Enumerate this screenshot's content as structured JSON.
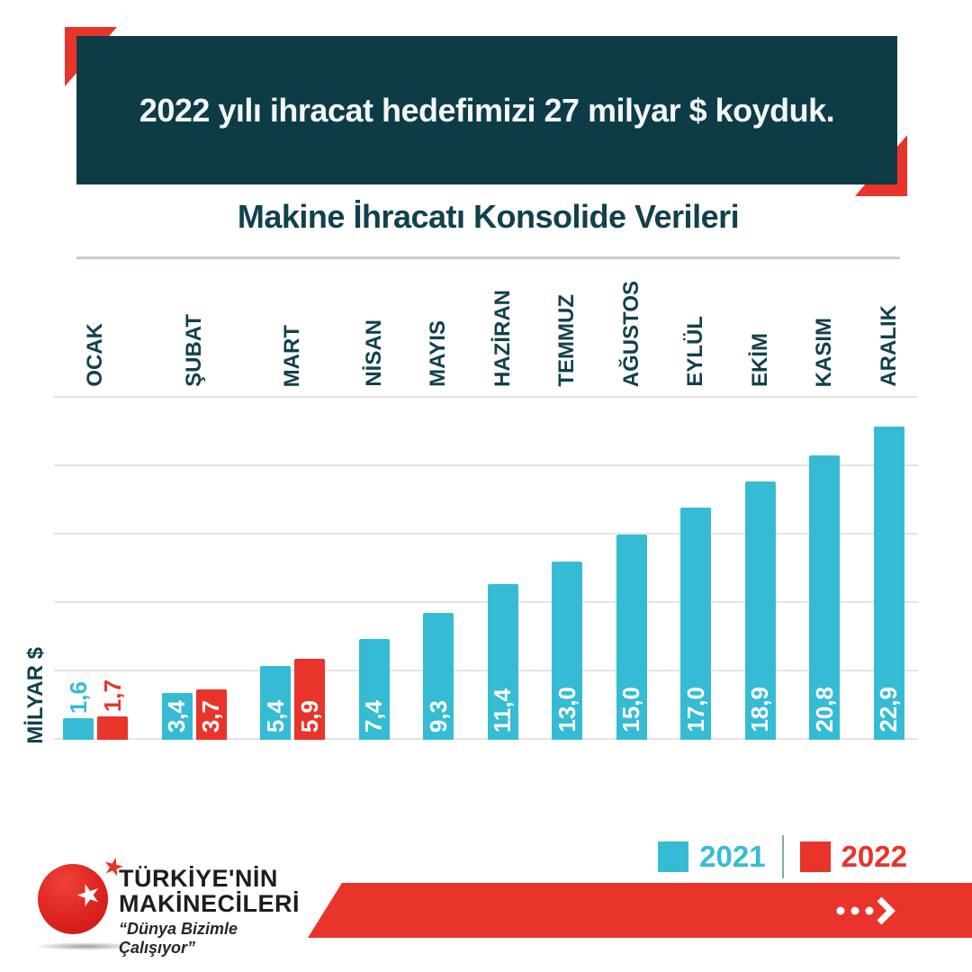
{
  "header": {
    "text": "2022 yılı ihracat hedefimizi 27 milyar $ koyduk."
  },
  "chart": {
    "title": "Makine İhracatı Konsolide Verileri"
  },
  "chart_data": {
    "type": "bar",
    "title": "Makine İhracatı Konsolide Verileri",
    "ylabel": "MİLYAR $",
    "ylim": [
      0,
      25
    ],
    "grid_step": 5,
    "grid": true,
    "legend_position": "bottom-right",
    "categories": [
      "OCAK",
      "ŞUBAT",
      "MART",
      "NİSAN",
      "MAYIS",
      "HAZİRAN",
      "TEMMUZ",
      "AĞUSTOS",
      "EYLÜL",
      "EKİM",
      "KASIM",
      "ARALIK"
    ],
    "series": [
      {
        "name": "2021",
        "color": "#35bcd4",
        "values": [
          1.6,
          3.4,
          5.4,
          7.4,
          9.3,
          11.4,
          13.0,
          15.0,
          17.0,
          18.9,
          20.8,
          22.9
        ],
        "labels": [
          "1,6",
          "3,4",
          "5,4",
          "7,4",
          "9,3",
          "11,4",
          "13,0",
          "15,0",
          "17,0",
          "18,9",
          "20,8",
          "22,9"
        ]
      },
      {
        "name": "2022",
        "color": "#e8342b",
        "values": [
          1.7,
          3.7,
          5.9,
          null,
          null,
          null,
          null,
          null,
          null,
          null,
          null,
          null
        ],
        "labels": [
          "1,7",
          "3,7",
          "5,9",
          null,
          null,
          null,
          null,
          null,
          null,
          null,
          null,
          null
        ]
      }
    ]
  },
  "legend": {
    "items": [
      {
        "label": "2021",
        "color": "#35bcd4"
      },
      {
        "label": "2022",
        "color": "#e8342b"
      }
    ]
  },
  "footer": {
    "logo": {
      "name_line1": "TÜRKİYE'NİN",
      "name_line2": "MAKİNECİLERİ",
      "tagline": "“Dünya Bizimle Çalışıyor”"
    }
  },
  "colors": {
    "dark_teal": "#0d3c46",
    "text_teal": "#11414d",
    "teal_bar": "#35bcd4",
    "red": "#e8342b",
    "gridline": "#e3e4e5",
    "separator": "#c3ced2"
  }
}
